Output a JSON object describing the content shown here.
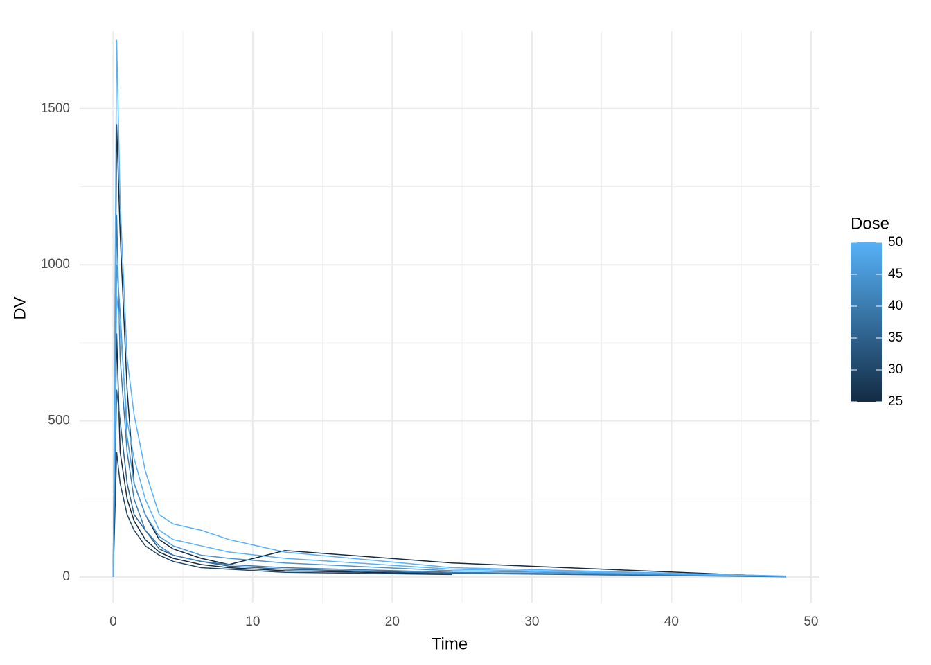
{
  "chart_data": {
    "type": "line",
    "x_label": "Time",
    "y_label": "DV",
    "xlim": [
      -2.4,
      50.6
    ],
    "ylim": [
      -82,
      1748
    ],
    "xticks": [
      0,
      10,
      20,
      30,
      40,
      50
    ],
    "yticks": [
      0,
      500,
      1000,
      1500
    ],
    "x_minor_grid": [
      5,
      15,
      25,
      35,
      45
    ],
    "y_minor_grid": [
      250,
      750,
      1250
    ],
    "grid": true,
    "x": [
      0,
      0.25,
      0.5,
      1,
      1.5,
      2.3,
      3.3,
      4.3,
      6.3,
      8.3,
      12.3,
      24.3,
      48.2
    ],
    "legend_title": "Dose",
    "colorbar": {
      "lim": [
        25,
        50
      ],
      "ticks": [
        25,
        30,
        35,
        40,
        45,
        50
      ],
      "low": "#132B43",
      "high": "#56B1F7"
    },
    "series": [
      {
        "dose": 25,
        "values": [
          0,
          1450,
          1100,
          600,
          300,
          200,
          120,
          90,
          60,
          40,
          85,
          45,
          1
        ]
      },
      {
        "dose": 25,
        "values": [
          0,
          780,
          400,
          250,
          180,
          120,
          80,
          60,
          40,
          30,
          20,
          10,
          null
        ]
      },
      {
        "dose": 30,
        "values": [
          0,
          400,
          300,
          200,
          150,
          100,
          70,
          50,
          30,
          25,
          15,
          8,
          null
        ]
      },
      {
        "dose": 35,
        "values": [
          0,
          600,
          500,
          300,
          200,
          150,
          90,
          70,
          50,
          35,
          25,
          12,
          1
        ]
      },
      {
        "dose": 40,
        "values": [
          0,
          1160,
          700,
          400,
          250,
          150,
          100,
          70,
          50,
          40,
          30,
          15,
          2
        ]
      },
      {
        "dose": 45,
        "values": [
          0,
          1000,
          850,
          450,
          300,
          200,
          130,
          100,
          70,
          60,
          45,
          20,
          2
        ]
      },
      {
        "dose": 50,
        "values": [
          0,
          900,
          800,
          500,
          380,
          250,
          150,
          120,
          100,
          80,
          60,
          25,
          2
        ]
      },
      {
        "dose": 50,
        "values": [
          0,
          1720,
          1200,
          700,
          520,
          340,
          200,
          170,
          150,
          120,
          80,
          30,
          3
        ]
      }
    ]
  }
}
